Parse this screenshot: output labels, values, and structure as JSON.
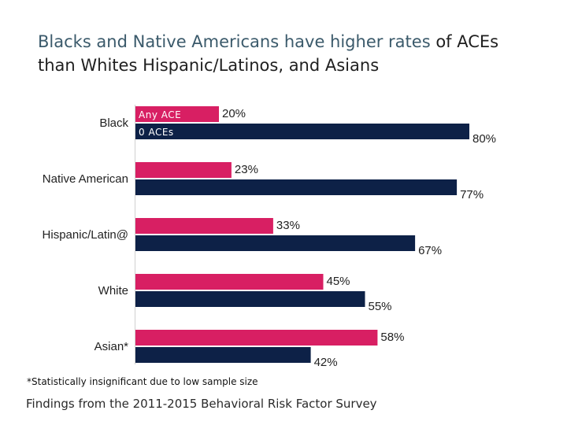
{
  "title": {
    "part1": "Blacks and Native Americans have higher rates",
    "part2": " of ACEs",
    "line2": "than Whites Hispanic/Latinos, and Asians"
  },
  "footnote": "*Statistically insignificant due to low sample size",
  "source": "Findings from the 2011-2015 Behavioral Risk Factor Survey",
  "colors": {
    "any_ace": "#d81f63",
    "zero_aces": "#0d2147"
  },
  "chart_data": {
    "type": "bar",
    "orientation": "horizontal",
    "categories": [
      "Black",
      "Native American",
      "Hispanic/Latin@",
      "White",
      "Asian*"
    ],
    "series": [
      {
        "name": "Any ACE",
        "values": [
          20,
          23,
          33,
          45,
          58
        ],
        "labels": [
          "20%",
          "23%",
          "33%",
          "45%",
          "58%"
        ]
      },
      {
        "name": "0 ACEs",
        "values": [
          80,
          77,
          67,
          55,
          42
        ],
        "labels": [
          "80%",
          "77%",
          "67%",
          "55%",
          "42%"
        ]
      }
    ],
    "xlim": [
      0,
      100
    ],
    "grid": false,
    "legend": "inside-first-bars"
  }
}
